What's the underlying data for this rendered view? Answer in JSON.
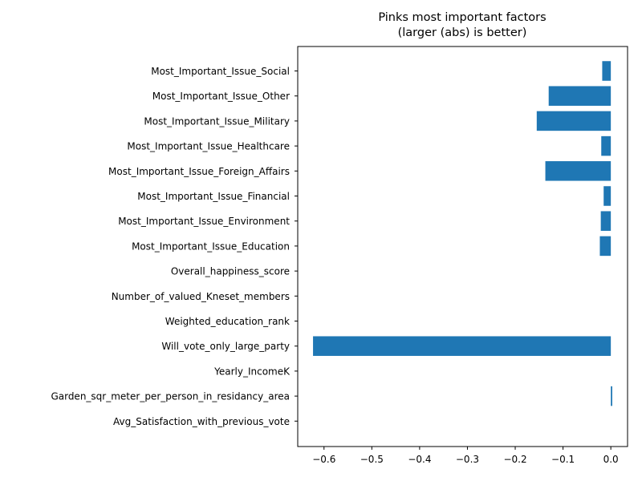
{
  "chart_data": {
    "type": "bar",
    "orientation": "horizontal",
    "title_line1": "Pinks most important factors",
    "title_line2": "(larger (abs) is better)",
    "xlabel": "",
    "ylabel": "",
    "xlim": [
      -0.655,
      0.035
    ],
    "xticks": [
      -0.6,
      -0.5,
      -0.4,
      -0.3,
      -0.2,
      -0.1,
      0.0
    ],
    "xtick_labels": [
      "−0.6",
      "−0.5",
      "−0.4",
      "−0.3",
      "−0.2",
      "−0.1",
      "0.0"
    ],
    "grid": false,
    "bar_color": "#1f77b4",
    "categories": [
      "Most_Important_Issue_Social",
      "Most_Important_Issue_Other",
      "Most_Important_Issue_Military",
      "Most_Important_Issue_Healthcare",
      "Most_Important_Issue_Foreign_Affairs",
      "Most_Important_Issue_Financial",
      "Most_Important_Issue_Environment",
      "Most_Important_Issue_Education",
      "Overall_happiness_score",
      "Number_of_valued_Kneset_members",
      "Weighted_education_rank",
      "Will_vote_only_large_party",
      "Yearly_IncomeK",
      "Garden_sqr_meter_per_person_in_residancy_area",
      "Avg_Satisfaction_with_previous_vote"
    ],
    "values": [
      -0.018,
      -0.13,
      -0.155,
      -0.02,
      -0.137,
      -0.015,
      -0.021,
      -0.023,
      0.0,
      0.0,
      0.0,
      -0.623,
      0.0,
      0.003,
      0.0
    ]
  }
}
